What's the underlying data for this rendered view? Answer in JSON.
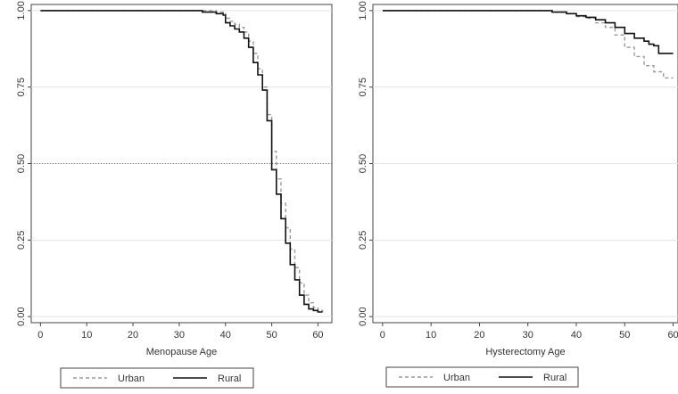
{
  "chart_data": [
    {
      "type": "line",
      "xlabel": "Menopause Age",
      "ylabel": "",
      "xlim": [
        -2,
        63
      ],
      "ylim": [
        -0.02,
        1.02
      ],
      "x_ticks": [
        "0",
        "10",
        "20",
        "30",
        "40",
        "50",
        "60"
      ],
      "y_ticks": [
        "0.00",
        "0.25",
        "0.50",
        "0.75",
        "1.00"
      ],
      "grid": "horizontal",
      "reference_line_y": 0.5,
      "legend_position": "bottom",
      "series": [
        {
          "name": "Urban",
          "style": "dashed",
          "color": "#999999",
          "x": [
            0,
            35,
            38,
            39.5,
            40,
            41,
            42,
            43,
            44,
            45,
            46,
            47,
            48,
            49,
            50,
            51,
            52,
            53,
            54,
            55,
            56,
            57,
            58,
            59,
            60,
            61
          ],
          "y": [
            1.0,
            1.0,
            0.995,
            0.99,
            0.975,
            0.965,
            0.955,
            0.945,
            0.93,
            0.9,
            0.86,
            0.81,
            0.75,
            0.66,
            0.54,
            0.45,
            0.37,
            0.29,
            0.22,
            0.16,
            0.11,
            0.07,
            0.045,
            0.03,
            0.02,
            0.015
          ]
        },
        {
          "name": "Rural",
          "style": "solid",
          "color": "#111111",
          "x": [
            0,
            34,
            35,
            38,
            39.5,
            40,
            41,
            42,
            43,
            44,
            45,
            46,
            47,
            48,
            49,
            50,
            51,
            52,
            53,
            54,
            55,
            56,
            57,
            58,
            59,
            60,
            61
          ],
          "y": [
            1.0,
            1.0,
            0.995,
            0.99,
            0.985,
            0.96,
            0.95,
            0.94,
            0.93,
            0.91,
            0.88,
            0.83,
            0.79,
            0.74,
            0.64,
            0.48,
            0.4,
            0.32,
            0.24,
            0.17,
            0.12,
            0.07,
            0.04,
            0.025,
            0.02,
            0.015,
            0.015
          ]
        }
      ]
    },
    {
      "type": "line",
      "xlabel": "Hysterectomy Age",
      "ylabel": "",
      "xlim": [
        -2,
        61
      ],
      "ylim": [
        -0.02,
        1.02
      ],
      "x_ticks": [
        "0",
        "10",
        "20",
        "30",
        "40",
        "50",
        "60"
      ],
      "y_ticks": [
        "0.00",
        "0.25",
        "0.50",
        "0.75",
        "1.00"
      ],
      "grid": "horizontal",
      "legend_position": "bottom",
      "series": [
        {
          "name": "Urban",
          "style": "dashed",
          "color": "#999999",
          "x": [
            0,
            30,
            35,
            38,
            40,
            42,
            44,
            46,
            48,
            50,
            52,
            54,
            56,
            58,
            60
          ],
          "y": [
            1.0,
            1.0,
            0.995,
            0.99,
            0.98,
            0.975,
            0.96,
            0.945,
            0.92,
            0.88,
            0.85,
            0.82,
            0.8,
            0.78,
            0.78
          ]
        },
        {
          "name": "Rural",
          "style": "solid",
          "color": "#111111",
          "x": [
            0,
            30,
            35,
            38,
            40,
            42,
            44,
            46,
            48,
            50,
            52,
            54,
            55,
            56,
            57,
            58,
            60
          ],
          "y": [
            1.0,
            1.0,
            0.995,
            0.99,
            0.983,
            0.978,
            0.97,
            0.96,
            0.945,
            0.925,
            0.91,
            0.9,
            0.89,
            0.885,
            0.86,
            0.86,
            0.86
          ]
        }
      ]
    }
  ]
}
